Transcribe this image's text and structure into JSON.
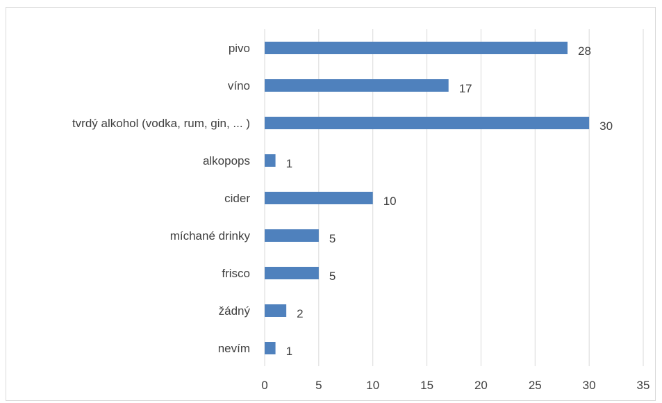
{
  "chart_data": {
    "type": "bar",
    "orientation": "horizontal",
    "categories": [
      "pivo",
      "víno",
      "tvrdý alkohol (vodka, rum, gin, ... )",
      "alkopops",
      "cider",
      "míchané drinky",
      "frisco",
      "žádný",
      "nevím"
    ],
    "values": [
      28,
      17,
      30,
      1,
      10,
      5,
      5,
      2,
      1
    ],
    "xlim": [
      0,
      35
    ],
    "xticks": [
      0,
      5,
      10,
      15,
      20,
      25,
      30,
      35
    ],
    "grid": true,
    "legend": "none",
    "bar_color": "#4f81bd",
    "grid_color": "#d9d9d9",
    "text_color": "#404040",
    "title": "",
    "xlabel": "",
    "ylabel": ""
  }
}
